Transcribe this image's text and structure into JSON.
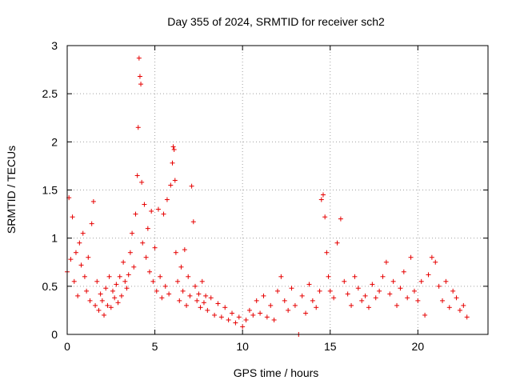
{
  "chart_data": {
    "type": "scatter",
    "title": "Day 355 of 2024, SRMTID for receiver sch2",
    "xlabel": "GPS time / hours",
    "ylabel": "SRMTID / TECUs",
    "xlim": [
      0,
      24
    ],
    "ylim": [
      0,
      3
    ],
    "xticks": [
      0,
      5,
      10,
      15,
      20
    ],
    "xtick_labels": [
      "0",
      "5",
      "10",
      "15",
      "20"
    ],
    "yticks": [
      0,
      0.5,
      1,
      1.5,
      2,
      2.5,
      3
    ],
    "ytick_labels": [
      "0",
      "0.5",
      "1",
      "1.5",
      "2",
      "2.5",
      "3"
    ],
    "grid": true,
    "marker": "+",
    "series": [
      {
        "name": "SRMTID",
        "color": "#e60000",
        "x": [
          0.0,
          0.1,
          0.2,
          0.3,
          0.4,
          0.5,
          0.6,
          0.7,
          0.8,
          0.9,
          1.0,
          1.1,
          1.2,
          1.3,
          1.4,
          1.5,
          1.6,
          1.7,
          1.8,
          1.9,
          2.0,
          2.1,
          2.2,
          2.3,
          2.4,
          2.5,
          2.6,
          2.7,
          2.8,
          2.9,
          3.0,
          3.1,
          3.2,
          3.3,
          3.4,
          3.5,
          3.6,
          3.7,
          3.8,
          3.9,
          4.0,
          4.05,
          4.1,
          4.15,
          4.2,
          4.25,
          4.3,
          4.4,
          4.5,
          4.6,
          4.7,
          4.8,
          4.9,
          5.0,
          5.1,
          5.2,
          5.3,
          5.4,
          5.5,
          5.6,
          5.7,
          5.8,
          5.9,
          6.0,
          6.05,
          6.1,
          6.15,
          6.2,
          6.3,
          6.4,
          6.5,
          6.6,
          6.7,
          6.8,
          6.9,
          7.0,
          7.1,
          7.2,
          7.3,
          7.4,
          7.5,
          7.6,
          7.7,
          7.8,
          7.9,
          8.0,
          8.2,
          8.4,
          8.6,
          8.8,
          9.0,
          9.2,
          9.4,
          9.6,
          9.8,
          10.0,
          10.2,
          10.4,
          10.6,
          10.8,
          11.0,
          11.2,
          11.4,
          11.6,
          11.8,
          12.0,
          12.2,
          12.4,
          12.6,
          12.8,
          13.0,
          13.2,
          13.4,
          13.6,
          13.8,
          14.0,
          14.2,
          14.4,
          14.5,
          14.6,
          14.7,
          14.8,
          14.9,
          15.0,
          15.2,
          15.4,
          15.6,
          15.8,
          16.0,
          16.2,
          16.4,
          16.6,
          16.8,
          17.0,
          17.2,
          17.4,
          17.6,
          17.8,
          18.0,
          18.2,
          18.4,
          18.6,
          18.8,
          19.0,
          19.2,
          19.4,
          19.6,
          19.8,
          20.0,
          20.2,
          20.4,
          20.6,
          20.8,
          21.0,
          21.2,
          21.4,
          21.6,
          21.8,
          22.0,
          22.2,
          22.4,
          22.6,
          22.8
        ],
        "y": [
          0.65,
          1.42,
          0.78,
          1.22,
          0.55,
          0.85,
          0.4,
          0.95,
          0.72,
          1.05,
          0.6,
          0.45,
          0.8,
          0.35,
          1.15,
          1.38,
          0.3,
          0.55,
          0.25,
          0.42,
          0.35,
          0.2,
          0.48,
          0.3,
          0.6,
          0.28,
          0.45,
          0.38,
          0.52,
          0.33,
          0.6,
          0.4,
          0.75,
          0.55,
          0.48,
          0.62,
          0.85,
          1.05,
          0.7,
          1.25,
          1.65,
          2.15,
          2.87,
          2.68,
          2.6,
          1.58,
          0.95,
          1.35,
          0.8,
          1.1,
          0.65,
          1.28,
          0.55,
          0.9,
          0.45,
          1.3,
          0.6,
          0.38,
          1.25,
          0.5,
          1.4,
          0.42,
          1.55,
          1.78,
          1.95,
          1.92,
          1.6,
          0.85,
          0.55,
          0.35,
          0.7,
          0.45,
          0.88,
          0.3,
          0.6,
          0.4,
          1.54,
          1.17,
          0.5,
          0.35,
          0.42,
          0.28,
          0.55,
          0.33,
          0.4,
          0.25,
          0.38,
          0.2,
          0.32,
          0.18,
          0.28,
          0.15,
          0.22,
          0.12,
          0.18,
          0.08,
          0.15,
          0.25,
          0.2,
          0.35,
          0.22,
          0.4,
          0.18,
          0.3,
          0.15,
          0.45,
          0.6,
          0.35,
          0.25,
          0.48,
          0.3,
          0.0,
          0.4,
          0.22,
          0.52,
          0.35,
          0.28,
          0.45,
          1.4,
          1.45,
          1.22,
          0.85,
          0.6,
          0.45,
          0.38,
          0.95,
          1.2,
          0.55,
          0.42,
          0.3,
          0.6,
          0.48,
          0.35,
          0.4,
          0.28,
          0.52,
          0.38,
          0.45,
          0.6,
          0.75,
          0.42,
          0.55,
          0.3,
          0.48,
          0.65,
          0.38,
          0.8,
          0.45,
          0.35,
          0.55,
          0.2,
          0.62,
          0.8,
          0.75,
          0.5,
          0.35,
          0.55,
          0.28,
          0.45,
          0.38,
          0.25,
          0.3,
          0.18
        ]
      }
    ]
  }
}
